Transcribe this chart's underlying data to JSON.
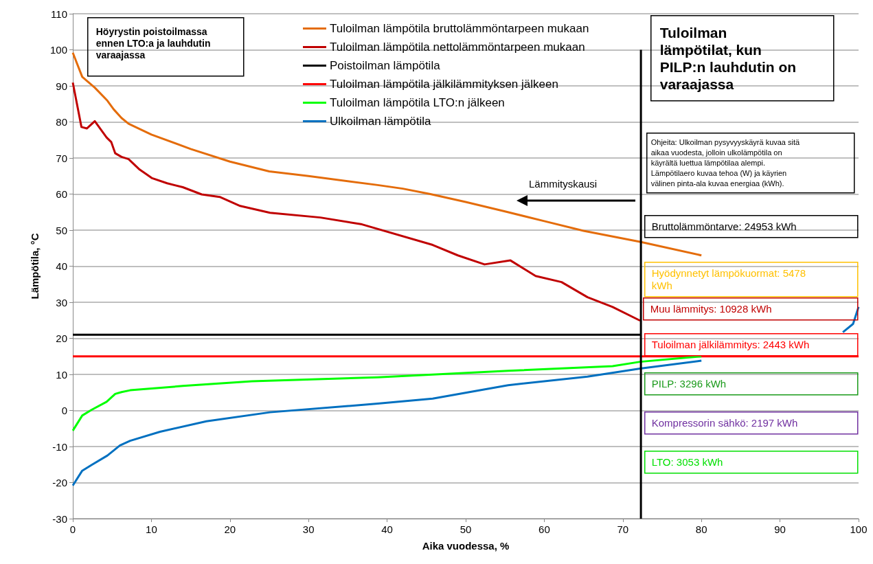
{
  "chart_data": {
    "type": "line",
    "title": "Tuloilman lämpötilat, kun PILP:n lauhdutin on varaajassa",
    "subtitle": "Höyrystin poistoilmassa ennen LTO:a ja lauhdutin varaajassa",
    "xlabel": "Aika vuodessa, %",
    "ylabel": "Lämpötila, °C",
    "xlim": [
      0,
      100
    ],
    "xticks": [
      0,
      10,
      20,
      30,
      40,
      50,
      60,
      70,
      80,
      90,
      100
    ],
    "ylim": [
      -30,
      110
    ],
    "yticks": [
      -30,
      -20,
      -10,
      0,
      10,
      20,
      30,
      40,
      50,
      60,
      70,
      80,
      90,
      100,
      110
    ],
    "grid": "y",
    "legend": "top",
    "marker": "none",
    "line_style": "solid",
    "series": [
      {
        "name": "Tuloilman lämpötila bruttolämmöntarpeen mukaan",
        "color": "#e46c0a",
        "x": [
          0,
          1.2,
          2.8,
          4.4,
          5.2,
          6.2,
          7.1,
          10,
          15,
          20,
          25,
          30,
          38.8,
          42,
          45.5,
          50,
          55,
          60,
          65,
          72.3,
          80
        ],
        "values": [
          99.2,
          92.5,
          89.5,
          85.9,
          83.5,
          81.1,
          79.5,
          76.5,
          72.5,
          69,
          66.3,
          65,
          62.5,
          61.5,
          60,
          57.8,
          55.2,
          52.5,
          49.8,
          46.7,
          43
        ]
      },
      {
        "name": "Tuloilman lämpötila nettolämmöntarpeen mukaan",
        "color": "#c00000",
        "x": [
          0,
          1.1,
          1.8,
          2.8,
          4.3,
          4.9,
          5.4,
          6.2,
          7.1,
          8.5,
          10.1,
          12,
          14,
          16.4,
          18.7,
          21.3,
          25.1,
          31.5,
          36.8,
          45.8,
          49,
          52.4,
          55.7,
          58.9,
          62.2,
          65.5,
          68.7,
          72.2
        ],
        "values": [
          90.9,
          78.6,
          78.2,
          80.2,
          75.7,
          74.4,
          71.3,
          70.3,
          69.7,
          66.8,
          64.4,
          63,
          61.9,
          59.9,
          59.2,
          56.7,
          54.8,
          53.5,
          51.6,
          45.9,
          43,
          40.5,
          41.6,
          37.3,
          35.6,
          31.4,
          28.7,
          24.9
        ]
      },
      {
        "name": "Poistoilman lämpötila",
        "color": "#000000",
        "x": [
          0,
          72.3
        ],
        "values": [
          21,
          21
        ]
      },
      {
        "name": "Tuloilman lämpötila jälkilämmityksen jälkeen",
        "color": "#ff0000",
        "x": [
          0,
          100
        ],
        "values": [
          15,
          15
        ]
      },
      {
        "name": "Tuloilman lämpötila LTO:n jälkeen",
        "color": "#00ff00",
        "x": [
          0,
          1.2,
          2.4,
          4.3,
          5.4,
          6.2,
          7.3,
          14,
          22.8,
          38.8,
          55.4,
          68.7,
          72.2,
          80
        ],
        "values": [
          -5.6,
          -1.4,
          0.2,
          2.4,
          4.6,
          5.1,
          5.6,
          6.8,
          8.1,
          9.2,
          11,
          12.3,
          13.5,
          15
        ]
      },
      {
        "name": "Ulkoilman lämpötila",
        "color": "#0070c0",
        "x": [
          0,
          1.2,
          2.4,
          4.4,
          6,
          7.3,
          11.1,
          17,
          25.1,
          38.8,
          45.8,
          55.4,
          65.5,
          72.2,
          80,
          86.1,
          92,
          96,
          98,
          99.3,
          100
        ],
        "values": [
          -20.8,
          -16.7,
          -15.1,
          -12.5,
          -9.7,
          -8.4,
          -5.9,
          -3,
          -0.5,
          1.9,
          3.3,
          7,
          9.4,
          11.6,
          13.8,
          null,
          null,
          null,
          21.7,
          24,
          28.7
        ]
      },
      {
        "color": "#000000",
        "x": [
          72.3,
          72.3
        ],
        "values": [
          -30,
          100
        ]
      }
    ],
    "annotations": [
      "Lämmityskausi",
      "Ohjeita: Ulkoilman pysyvyyskäyrä kuvaa sitä aikaa vuodesta, jolloin ulkolämpötila on käyrältä luettua lämpötilaa alempi. Lämpötilaero kuvaa tehoa (W) ja käyrien välinen pinta-ala kuvaa energiaa (kWh).",
      "Bruttolämmöntarve: 24953 kWh",
      "Hyödynnetyt lämpökuormat: 5478 kWh",
      "Muu lämmitys: 10928 kWh",
      "Tuloilman jälkilämmitys: 2443 kWh",
      "PILP: 3296 kWh",
      "Kompressorin sähkö: 2197 kWh",
      "LTO: 3053 kWh"
    ]
  }
}
